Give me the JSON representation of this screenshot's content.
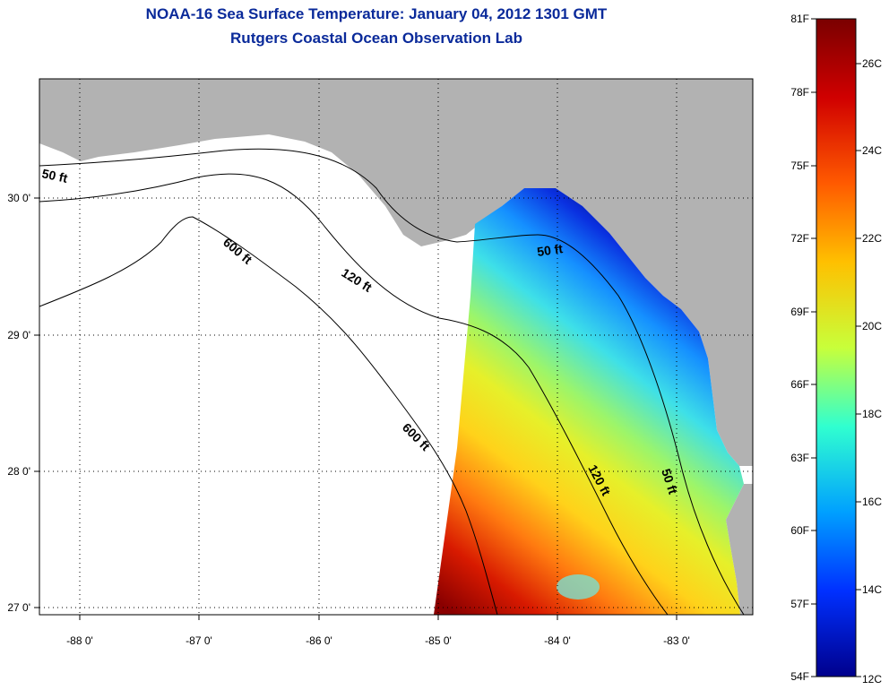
{
  "header": {
    "title": "NOAA-16 Sea Surface Temperature:  January 04, 2012 1301 GMT",
    "subtitle": "Rutgers Coastal Ocean Observation Lab"
  },
  "map": {
    "x_ticks": [
      "-88 0'",
      "-87 0'",
      "-86 0'",
      "-85 0'",
      "-84 0'",
      "-83 0'"
    ],
    "y_ticks": [
      "27 0'",
      "28 0'",
      "29 0'",
      "30 0'"
    ],
    "contour_labels": [
      "50 ft",
      "600 ft",
      "120 ft",
      "50 ft",
      "600 ft",
      "120 ft",
      "50 ft"
    ],
    "colors": {
      "land": "#b2b2b2",
      "water_nodata": "#ffffff",
      "contour": "#000000"
    }
  },
  "colorbar": {
    "f_labels": [
      "81F",
      "78F",
      "75F",
      "72F",
      "69F",
      "66F",
      "63F",
      "60F",
      "57F",
      "54F"
    ],
    "c_labels": [
      "26C",
      "24C",
      "22C",
      "20C",
      "18C",
      "16C",
      "14C",
      "12C"
    ],
    "scale": {
      "min_c": 12,
      "max_c": 27
    }
  }
}
